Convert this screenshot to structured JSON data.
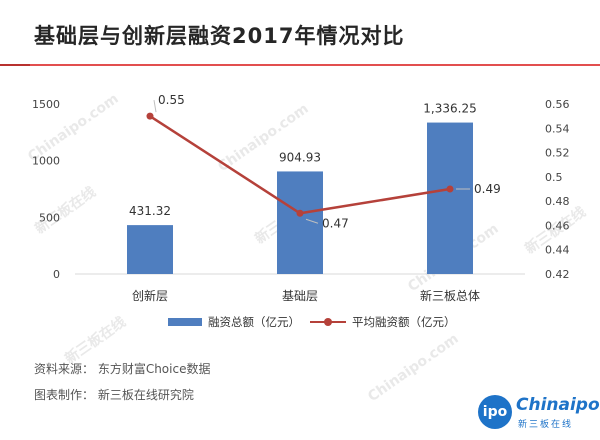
{
  "title": "基础层与创新层融资2017年情况对比",
  "watermarks": [
    "Chinaipo.com",
    "新三板在线"
  ],
  "chart_data": {
    "type": "bar",
    "categories": [
      "创新层",
      "基础层",
      "新三板总体"
    ],
    "series": [
      {
        "name": "融资总额（亿元）",
        "type": "bar",
        "axis": "left",
        "values": [
          431.32,
          904.93,
          1336.25
        ],
        "labels": [
          "431.32",
          "904.93",
          "1,336.25"
        ],
        "color": "#4f7ebf"
      },
      {
        "name": "平均融资额（亿元）",
        "type": "line",
        "axis": "right",
        "values": [
          0.55,
          0.47,
          0.49
        ],
        "labels": [
          "0.55",
          "0.47",
          "0.49"
        ],
        "color": "#b5413a"
      }
    ],
    "y_left": {
      "min": 0,
      "max": 1500,
      "ticks": [
        0,
        500,
        1000,
        1500
      ]
    },
    "y_right": {
      "min": 0.42,
      "max": 0.56,
      "ticks": [
        "0.42",
        "0.44",
        "0.46",
        "0.48",
        "0.5",
        "0.52",
        "0.54",
        "0.56"
      ]
    },
    "legend_position": "bottom"
  },
  "footer": {
    "source": "资料来源：  东方财富Choice数据",
    "made_by": "图表制作：  新三板在线研究院"
  },
  "logo": {
    "mark": "ipo",
    "name": "Chinaipo",
    "sub": "新三板在线"
  },
  "colors": {
    "accent": "#e24f4f",
    "bar": "#4f7ebf",
    "line": "#b5413a"
  }
}
